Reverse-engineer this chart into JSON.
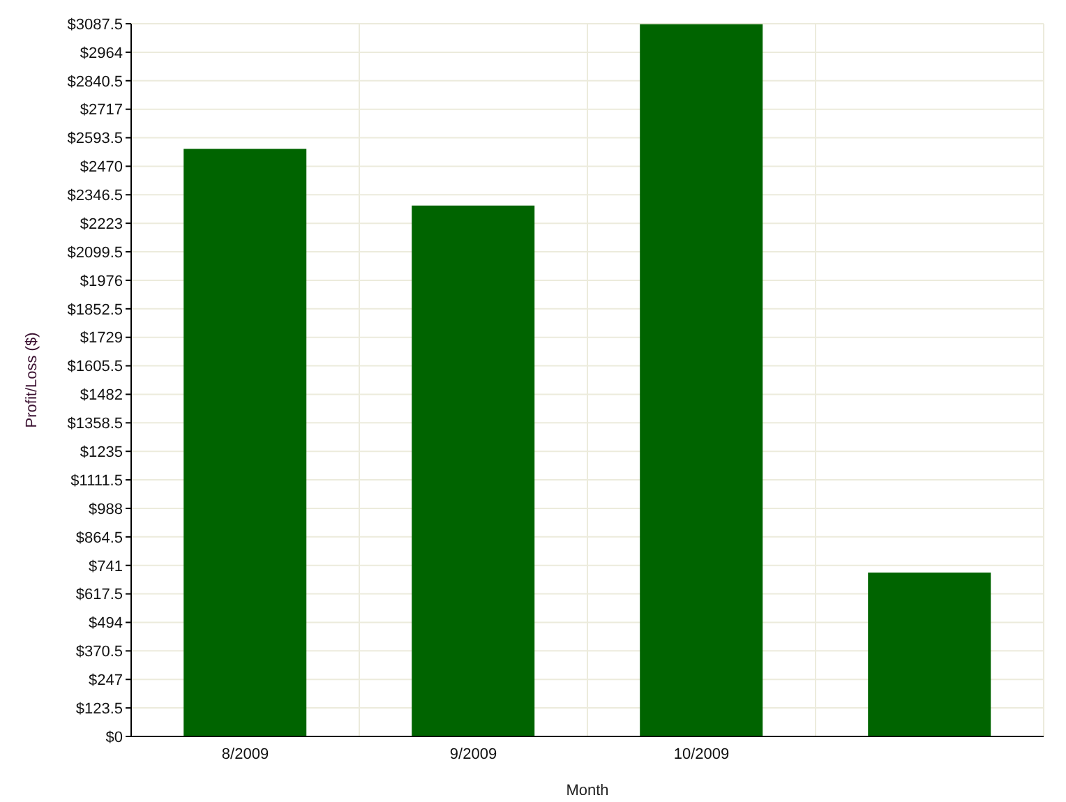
{
  "chart_data": {
    "type": "bar",
    "xlabel": "Month",
    "ylabel": "Profit/Loss ($)",
    "categories": [
      "8/2009",
      "9/2009",
      "10/2009",
      null
    ],
    "values": [
      2545,
      2300,
      3085,
      710
    ],
    "color": "#006400",
    "ylim": [
      0,
      3087.5
    ],
    "yticks": [
      {
        "value": 0,
        "label": "$0"
      },
      {
        "value": 123.5,
        "label": "$123.5"
      },
      {
        "value": 247,
        "label": "$247"
      },
      {
        "value": 370.5,
        "label": "$370.5"
      },
      {
        "value": 494,
        "label": "$494"
      },
      {
        "value": 617.5,
        "label": "$617.5"
      },
      {
        "value": 741,
        "label": "$741"
      },
      {
        "value": 864.5,
        "label": "$864.5"
      },
      {
        "value": 988,
        "label": "$988"
      },
      {
        "value": 1111.5,
        "label": "$1111.5"
      },
      {
        "value": 1235,
        "label": "$1235"
      },
      {
        "value": 1358.5,
        "label": "$1358.5"
      },
      {
        "value": 1482,
        "label": "$1482"
      },
      {
        "value": 1605.5,
        "label": "$1605.5"
      },
      {
        "value": 1729,
        "label": "$1729"
      },
      {
        "value": 1852.5,
        "label": "$1852.5"
      },
      {
        "value": 1976,
        "label": "$1976"
      },
      {
        "value": 2099.5,
        "label": "$2099.5"
      },
      {
        "value": 2223,
        "label": "$2223"
      },
      {
        "value": 2346.5,
        "label": "$2346.5"
      },
      {
        "value": 2470,
        "label": "$2470"
      },
      {
        "value": 2593.5,
        "label": "$2593.5"
      },
      {
        "value": 2717,
        "label": "$2717"
      },
      {
        "value": 2840.5,
        "label": "$2840.5"
      },
      {
        "value": 2964,
        "label": "$2964"
      },
      {
        "value": 3087.5,
        "label": "$3087.5"
      }
    ],
    "grid": true
  }
}
